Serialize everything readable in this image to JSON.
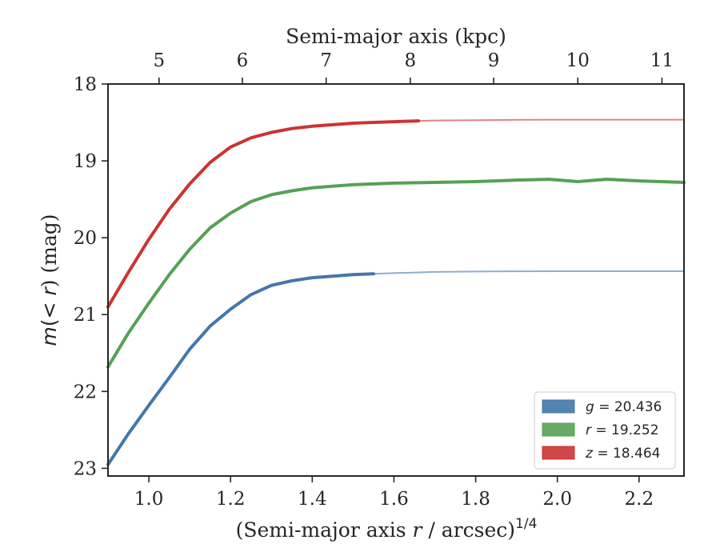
{
  "chart_data": {
    "type": "line",
    "xlabel": "(Semi-major axis r / arcsec)^1/4",
    "xlabel_parts": {
      "prefix": "(Semi-major axis ",
      "var": "r",
      "middle": " / arcsec)",
      "exponent": "1/4"
    },
    "ylabel": "m(< r) (mag)",
    "ylabel_parts": {
      "var": "m",
      "inner": "(< ",
      "r": "r",
      "tail": ") (mag)"
    },
    "top_xlabel": "Semi-major axis (kpc)",
    "xlim": [
      0.9,
      2.31
    ],
    "ylim": [
      23.1,
      18.0
    ],
    "y_inverted": true,
    "x_ticks": [
      1.0,
      1.2,
      1.4,
      1.6,
      1.8,
      2.0,
      2.2
    ],
    "x_tick_labels": [
      "1.0",
      "1.2",
      "1.4",
      "1.6",
      "1.8",
      "2.0",
      "2.2"
    ],
    "y_ticks": [
      18,
      19,
      20,
      21,
      22,
      23
    ],
    "y_tick_labels": [
      "18",
      "19",
      "20",
      "21",
      "22",
      "23"
    ],
    "top_ticks_kpc": [
      5,
      6,
      7,
      8,
      9,
      10,
      11
    ],
    "top_tick_labels": [
      "5",
      "6",
      "7",
      "8",
      "9",
      "10",
      "11"
    ],
    "top_axis_x_positions": [
      1.025,
      1.229,
      1.434,
      1.64,
      1.844,
      2.05,
      2.256
    ],
    "legend_placement": "lower-right",
    "grid": false,
    "series": [
      {
        "name": "g = 20.436",
        "legend_var": "g",
        "legend_value": "= 20.436",
        "color": "#4477aa",
        "x": [
          0.9,
          0.95,
          1.0,
          1.05,
          1.1,
          1.15,
          1.2,
          1.25,
          1.3,
          1.35,
          1.4,
          1.45,
          1.5,
          1.55,
          1.6,
          1.7,
          1.8,
          1.9,
          2.0,
          2.1,
          2.2,
          2.31
        ],
        "y": [
          22.95,
          22.55,
          22.18,
          21.82,
          21.45,
          21.15,
          20.93,
          20.74,
          20.62,
          20.56,
          20.52,
          20.5,
          20.48,
          20.47,
          20.46,
          20.445,
          20.44,
          20.437,
          20.436,
          20.436,
          20.436,
          20.436
        ],
        "solid_until_x": 1.55
      },
      {
        "name": "r = 19.252",
        "legend_var": "r",
        "legend_value": "= 19.252",
        "color": "#55a155",
        "x": [
          0.9,
          0.95,
          1.0,
          1.05,
          1.1,
          1.15,
          1.2,
          1.25,
          1.3,
          1.35,
          1.4,
          1.45,
          1.5,
          1.55,
          1.6,
          1.7,
          1.8,
          1.9,
          1.98,
          2.05,
          2.12,
          2.2,
          2.31
        ],
        "y": [
          21.68,
          21.24,
          20.85,
          20.48,
          20.15,
          19.87,
          19.68,
          19.53,
          19.44,
          19.39,
          19.35,
          19.33,
          19.31,
          19.3,
          19.29,
          19.28,
          19.27,
          19.25,
          19.24,
          19.27,
          19.24,
          19.26,
          19.28
        ],
        "solid_until_x": 2.31
      },
      {
        "name": "z = 18.464",
        "legend_var": "z",
        "legend_value": "= 18.464",
        "color": "#cc3333",
        "x": [
          0.9,
          0.95,
          1.0,
          1.05,
          1.1,
          1.15,
          1.2,
          1.25,
          1.3,
          1.35,
          1.4,
          1.45,
          1.5,
          1.55,
          1.6,
          1.66,
          1.7,
          1.8,
          1.9,
          2.0,
          2.1,
          2.2,
          2.31
        ],
        "y": [
          20.9,
          20.45,
          20.02,
          19.63,
          19.3,
          19.02,
          18.82,
          18.7,
          18.63,
          18.58,
          18.55,
          18.53,
          18.51,
          18.5,
          18.49,
          18.48,
          18.475,
          18.47,
          18.466,
          18.464,
          18.464,
          18.464,
          18.464
        ],
        "solid_until_x": 1.66
      }
    ]
  }
}
